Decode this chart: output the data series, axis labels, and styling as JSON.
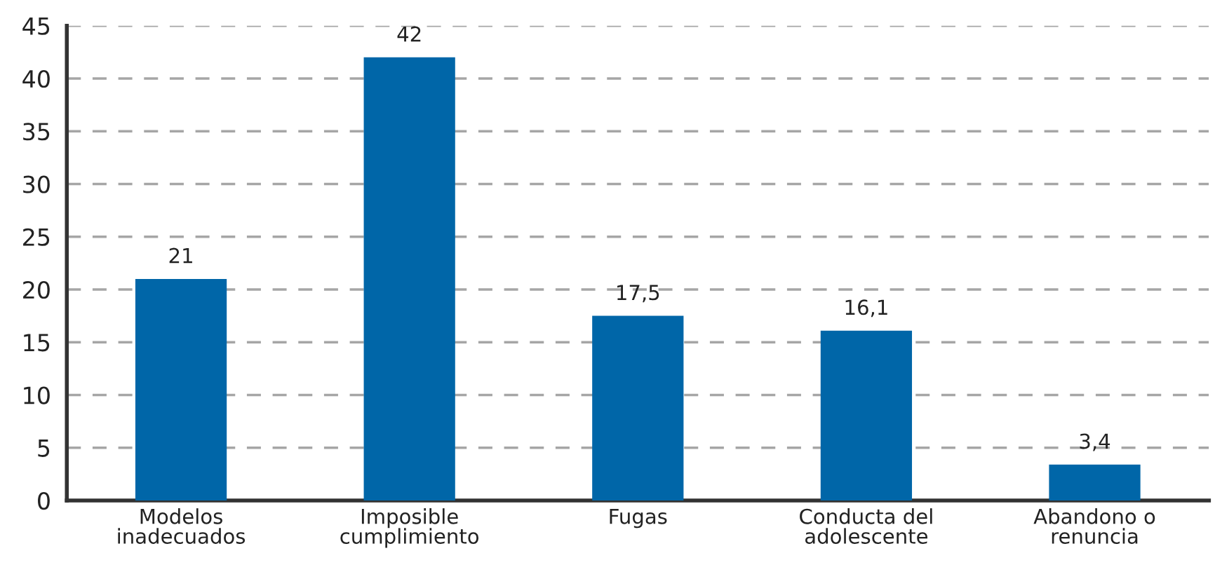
{
  "chart_data": {
    "type": "bar",
    "categories": [
      "Modelos\ninadecuados",
      "Imposible\ncumplimiento",
      "Fugas",
      "Conducta del\nadolescente",
      "Abandono o\nrenuncia"
    ],
    "values": [
      21,
      42,
      17.5,
      16.1,
      3.4
    ],
    "value_labels": [
      "21",
      "42",
      "17,5",
      "16,1",
      "3,4"
    ],
    "color": "#0066a8",
    "ylim": [
      0,
      45
    ],
    "yticks": [
      0,
      5,
      10,
      15,
      20,
      25,
      30,
      35,
      40,
      45
    ],
    "grid": "y",
    "legend": false
  }
}
